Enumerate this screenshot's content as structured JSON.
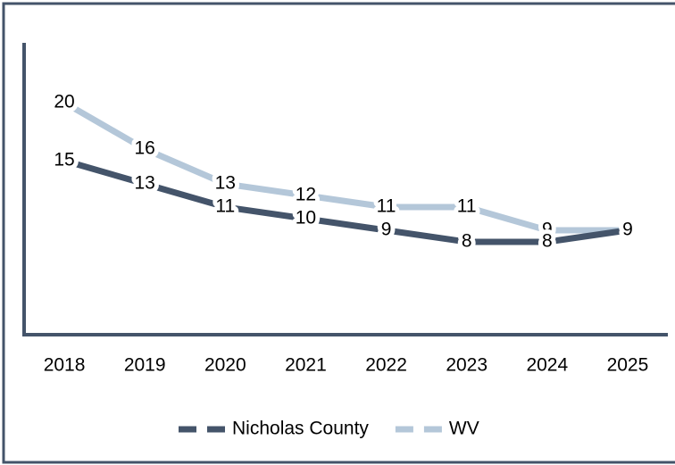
{
  "chart_data": {
    "type": "line",
    "categories": [
      "2018",
      "2019",
      "2020",
      "2021",
      "2022",
      "2023",
      "2024",
      "2025"
    ],
    "series": [
      {
        "name": "Nicholas County",
        "color": "#44546a",
        "values": [
          15,
          13,
          11,
          10,
          9,
          8,
          8,
          9
        ]
      },
      {
        "name": "WV",
        "color": "#b4c7d9",
        "values": [
          20,
          16,
          13,
          12,
          11,
          11,
          9,
          9
        ]
      }
    ],
    "ylim": [
      0,
      25
    ],
    "legend": "bottom"
  }
}
